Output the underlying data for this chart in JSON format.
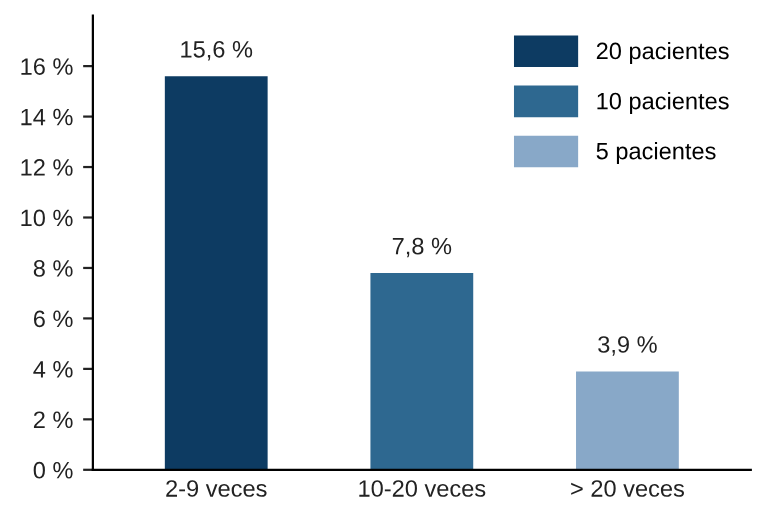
{
  "chart_data": {
    "type": "bar",
    "categories": [
      "2-9 veces",
      "10-20 veces",
      "> 20 veces"
    ],
    "series": [
      {
        "name": "20 pacientes",
        "color": "#0d3b62",
        "values": [
          15.6,
          null,
          null
        ],
        "value_labels": [
          "15,6 %",
          null,
          null
        ]
      },
      {
        "name": "10 pacientes",
        "color": "#2e6890",
        "values": [
          null,
          7.8,
          null
        ],
        "value_labels": [
          null,
          "7,8 %",
          null
        ]
      },
      {
        "name": "5 pacientes",
        "color": "#88a8c8",
        "values": [
          null,
          null,
          3.9
        ],
        "value_labels": [
          null,
          null,
          "3,9 %"
        ]
      }
    ],
    "ylim": [
      0,
      18
    ],
    "yticks": [
      {
        "value": 0,
        "label": "0 %"
      },
      {
        "value": 2,
        "label": "2 %"
      },
      {
        "value": 4,
        "label": "4 %"
      },
      {
        "value": 6,
        "label": "6 %"
      },
      {
        "value": 8,
        "label": "8 %"
      },
      {
        "value": 10,
        "label": "10 %"
      },
      {
        "value": 12,
        "label": "12 %"
      },
      {
        "value": 14,
        "label": "14 %"
      },
      {
        "value": 16,
        "label": "16 %"
      }
    ],
    "grid": false,
    "legend": "top right"
  }
}
